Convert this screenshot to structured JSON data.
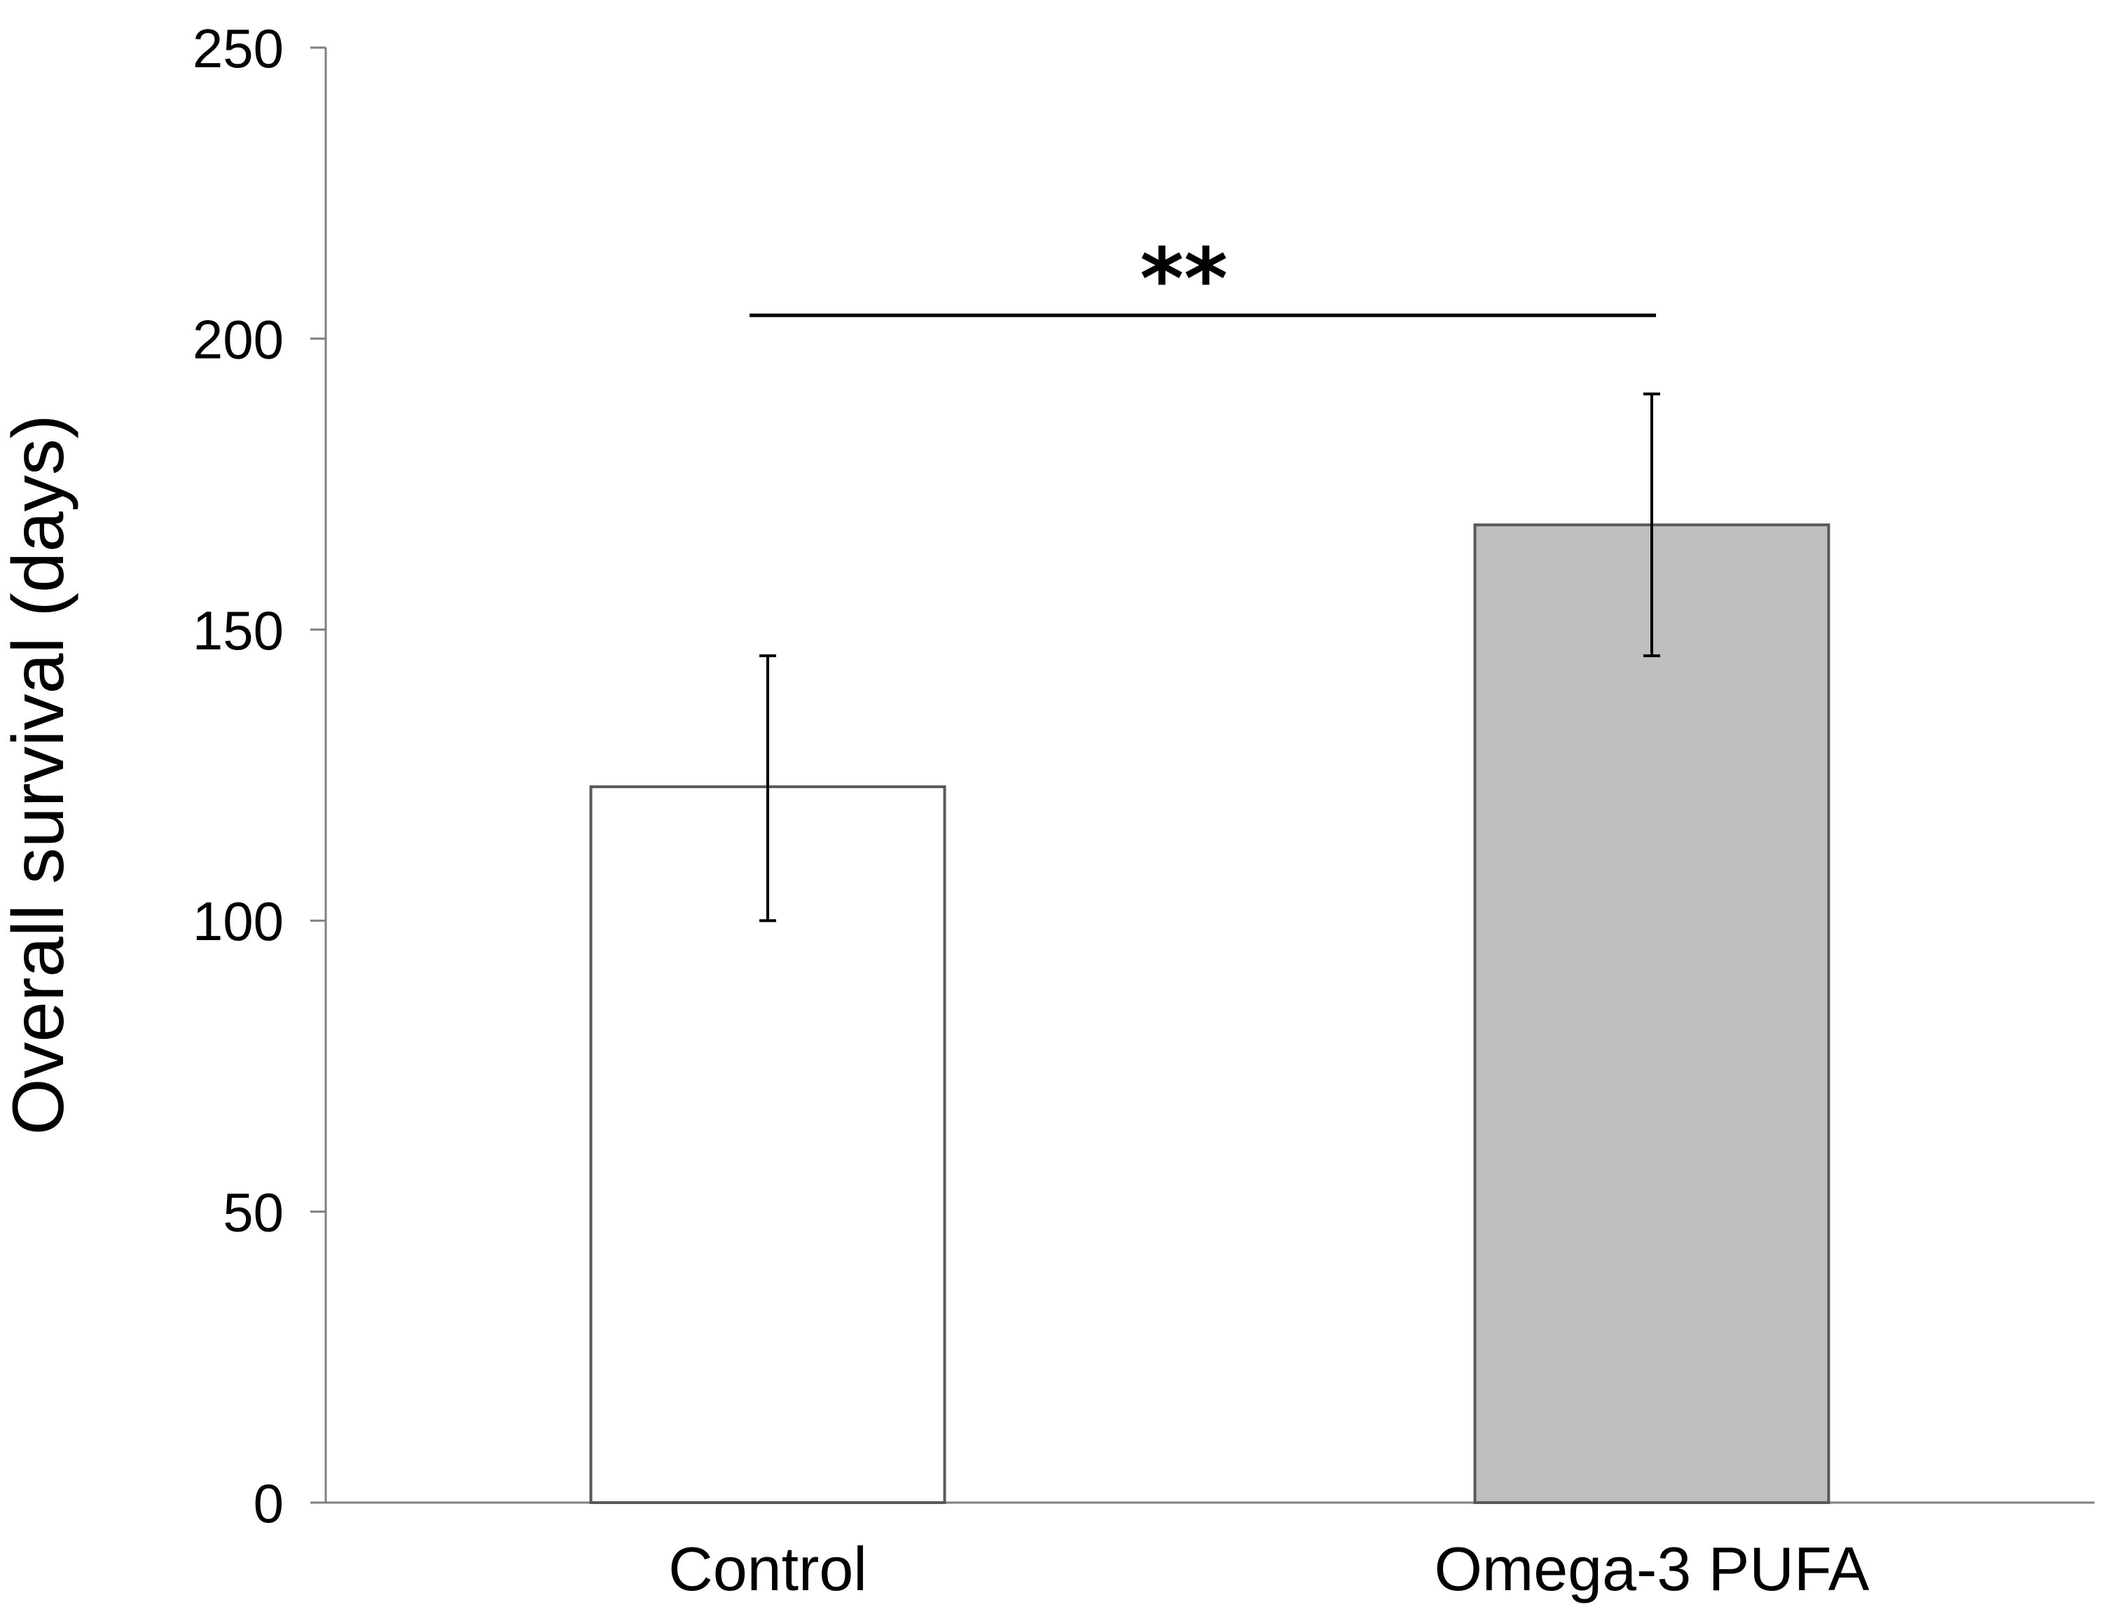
{
  "chart_data": {
    "type": "bar",
    "title": "",
    "xlabel": "",
    "ylabel": "Overall survival (days)",
    "ylim": [
      0,
      250
    ],
    "yticks": [
      0,
      50,
      100,
      150,
      200,
      250
    ],
    "ytick_labels": [
      "0",
      "50",
      "100",
      "150",
      "200",
      "250"
    ],
    "grid": false,
    "legend": "none",
    "categories": [
      "Control",
      "Omega-3 PUFA"
    ],
    "values": [
      123,
      168
    ],
    "error_bars": [
      {
        "low": 100,
        "high": 145.5
      },
      {
        "low": 145.5,
        "high": 190.5
      }
    ],
    "bar_colors": [
      "#ffffff",
      "#bfbfbf"
    ],
    "bar_edge_color": "#595959",
    "significance": {
      "label": "**",
      "between": [
        "Control",
        "Omega-3 PUFA"
      ],
      "y": 204
    }
  }
}
